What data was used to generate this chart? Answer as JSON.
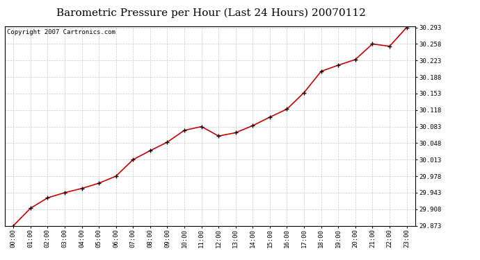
{
  "title": "Barometric Pressure per Hour (Last 24 Hours) 20070112",
  "copyright": "Copyright 2007 Cartronics.com",
  "hours": [
    "00:00",
    "01:00",
    "02:00",
    "03:00",
    "04:00",
    "05:00",
    "06:00",
    "07:00",
    "08:00",
    "09:00",
    "10:00",
    "11:00",
    "12:00",
    "13:00",
    "14:00",
    "15:00",
    "16:00",
    "17:00",
    "18:00",
    "19:00",
    "20:00",
    "21:00",
    "22:00",
    "23:00"
  ],
  "values": [
    29.873,
    29.91,
    29.932,
    29.943,
    29.952,
    29.963,
    29.978,
    30.013,
    30.032,
    30.05,
    30.075,
    30.083,
    30.063,
    30.07,
    30.085,
    30.103,
    30.12,
    30.155,
    30.2,
    30.213,
    30.225,
    30.258,
    30.253,
    30.293
  ],
  "yticks": [
    29.873,
    29.908,
    29.943,
    29.978,
    30.013,
    30.048,
    30.083,
    30.118,
    30.153,
    30.188,
    30.223,
    30.258,
    30.293
  ],
  "ylim_min": 29.873,
  "ylim_max": 30.293,
  "line_color": "#cc0000",
  "marker_color": "#000000",
  "bg_color": "#ffffff",
  "plot_bg_color": "#ffffff",
  "grid_color": "#bbbbbb",
  "title_fontsize": 11,
  "tick_fontsize": 6.5,
  "copyright_fontsize": 6.5
}
